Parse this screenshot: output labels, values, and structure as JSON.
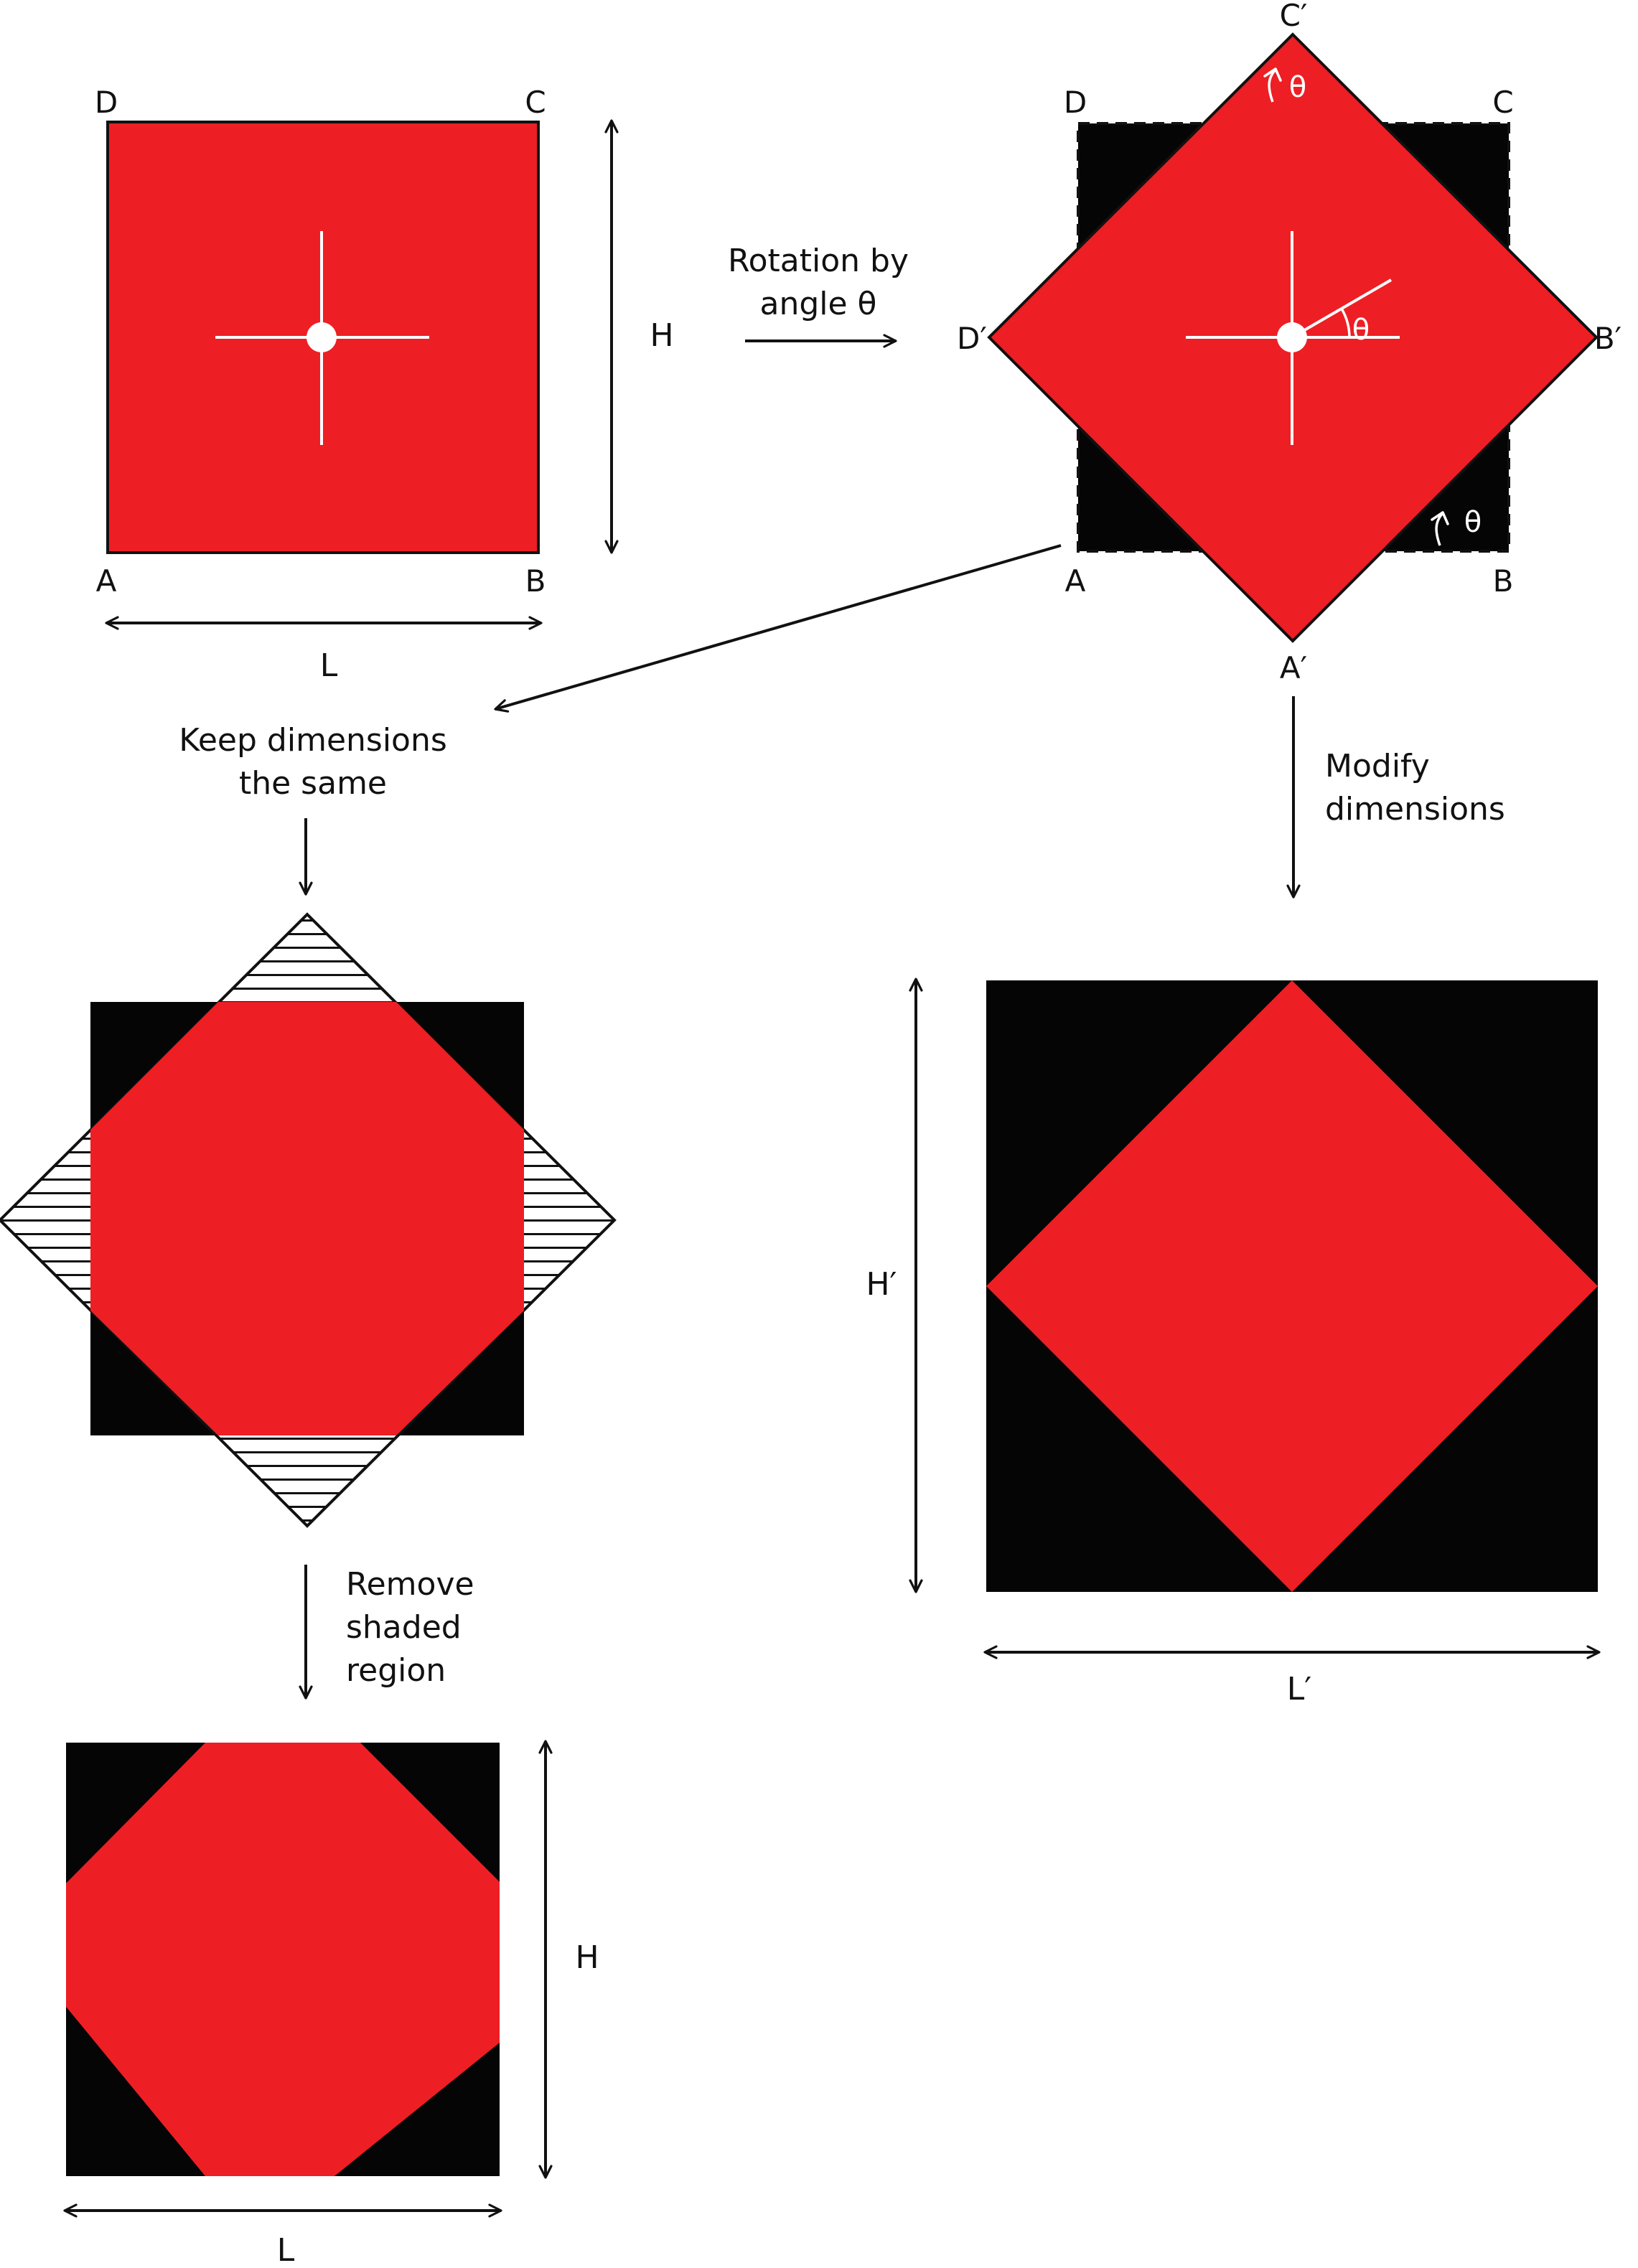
{
  "colors": {
    "red": "#ED1F24",
    "black": "#050505",
    "white": "#FFFFFF",
    "line": "#111111"
  },
  "original": {
    "corners": {
      "a": "A",
      "b": "B",
      "c": "C",
      "d": "D"
    },
    "width_label": "L",
    "height_label": "H"
  },
  "rotation_caption": [
    "Rotation by",
    "angle θ"
  ],
  "rotated": {
    "corners": {
      "a": "A",
      "b": "B",
      "c": "C",
      "d": "D"
    },
    "rotated_corners": {
      "a": "A′",
      "b": "B′",
      "c": "C′",
      "d": "D′"
    },
    "angle_symbol": "θ"
  },
  "keep_caption": [
    "Keep dimensions",
    "the same"
  ],
  "modify_caption": [
    "Modify",
    "dimensions"
  ],
  "remove_caption": [
    "Remove",
    "shaded",
    "region"
  ],
  "modified": {
    "width_label": "L′",
    "height_label": "H′"
  },
  "cropped": {
    "width_label": "L",
    "height_label": "H"
  }
}
